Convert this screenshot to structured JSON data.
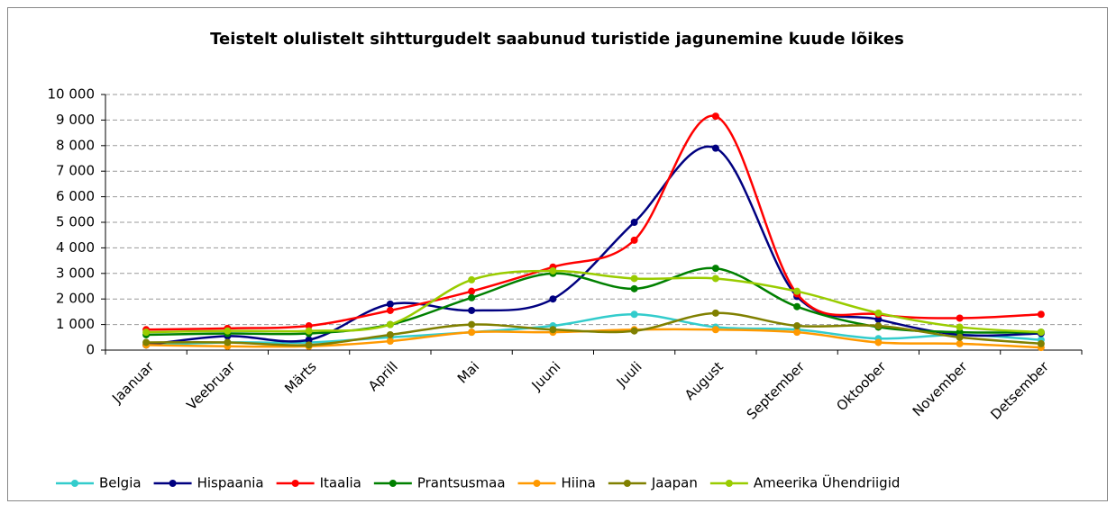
{
  "chart_data": {
    "type": "line",
    "title": "Teistelt olulistelt sihtturgudelt saabunud turistide jagunemine kuude lõikes",
    "categories": [
      "Jaanuar",
      "Veebruar",
      "Märts",
      "Aprill",
      "Mai",
      "Juuni",
      "Juuli",
      "August",
      "September",
      "Oktoober",
      "November",
      "Detsember"
    ],
    "ylim": [
      0,
      10000
    ],
    "yticks": [
      0,
      {
        "value": 1000,
        "label": "1 000"
      },
      {
        "value": 2000,
        "label": "2 000"
      },
      {
        "value": 3000,
        "label": "3 000"
      },
      {
        "value": 4000,
        "label": "4 000"
      },
      {
        "value": 5000,
        "label": "5 000"
      },
      {
        "value": 6000,
        "label": "6 000"
      },
      {
        "value": 7000,
        "label": "7 000"
      },
      {
        "value": 8000,
        "label": "8 000"
      },
      {
        "value": 9000,
        "label": "9 000"
      },
      {
        "value": 10000,
        "label": "10 000"
      }
    ],
    "grid": true,
    "legend": "bottom",
    "smooth": true,
    "series": [
      {
        "name": "Belgia",
        "color": "#33cccc",
        "values": [
          200,
          300,
          300,
          500,
          700,
          950,
          1400,
          900,
          800,
          450,
          600,
          400
        ]
      },
      {
        "name": "Hispaania",
        "color": "#000080",
        "values": [
          200,
          550,
          400,
          1800,
          1550,
          2000,
          5000,
          7900,
          2100,
          1200,
          600,
          650
        ]
      },
      {
        "name": "Itaalia",
        "color": "#ff0000",
        "values": [
          800,
          850,
          950,
          1550,
          2300,
          3250,
          4300,
          9150,
          2200,
          1400,
          1250,
          1400
        ]
      },
      {
        "name": "Prantsusmaa",
        "color": "#008000",
        "values": [
          600,
          650,
          650,
          1000,
          2050,
          3000,
          2400,
          3200,
          1700,
          900,
          700,
          700
        ]
      },
      {
        "name": "Hiina",
        "color": "#ff9900",
        "values": [
          200,
          150,
          150,
          350,
          700,
          700,
          800,
          800,
          700,
          300,
          250,
          100
        ]
      },
      {
        "name": "Jaapan",
        "color": "#808000",
        "values": [
          300,
          300,
          200,
          600,
          1000,
          800,
          750,
          1450,
          950,
          950,
          500,
          250
        ]
      },
      {
        "name": "Ameerika Ühendriigid",
        "color": "#99cc00",
        "values": [
          700,
          750,
          750,
          1000,
          2750,
          3100,
          2800,
          2800,
          2300,
          1450,
          900,
          700
        ]
      }
    ]
  }
}
